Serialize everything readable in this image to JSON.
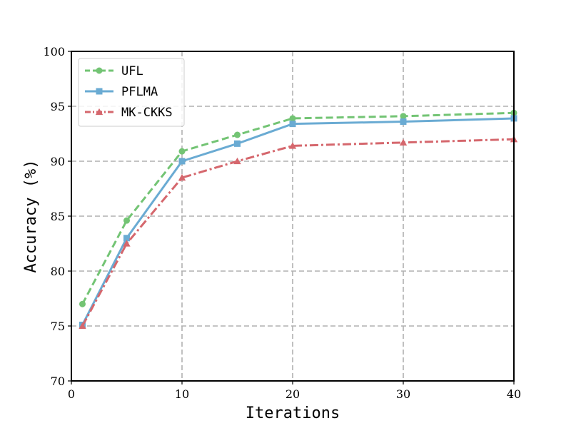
{
  "chart_data": {
    "type": "line",
    "title": "",
    "xlabel": "Iterations",
    "ylabel": "Accuracy (%)",
    "xlim": [
      0,
      40
    ],
    "ylim": [
      70,
      100
    ],
    "x_ticks": [
      0,
      10,
      20,
      30,
      40
    ],
    "y_ticks": [
      70,
      75,
      80,
      85,
      90,
      95,
      100
    ],
    "x_positions": [
      0,
      10,
      20,
      30,
      40
    ],
    "x_tick_labels": [
      "0",
      "10",
      "20",
      "30",
      "40"
    ],
    "y_tick_labels": [
      "70",
      "75",
      "80",
      "85",
      "90",
      "95",
      "100"
    ],
    "grid": true,
    "legend": "top-left",
    "x": [
      1,
      5,
      10,
      15,
      20,
      30,
      40
    ],
    "series": [
      {
        "name": "UFL",
        "color": "#73c474",
        "dash": "dashed",
        "marker": "circle",
        "values": [
          77.0,
          84.6,
          90.9,
          92.4,
          93.9,
          94.1,
          94.4
        ]
      },
      {
        "name": "PFLMA",
        "color": "#6aabd3",
        "dash": "solid",
        "marker": "square",
        "values": [
          75.1,
          83.0,
          90.0,
          91.6,
          93.4,
          93.6,
          93.9
        ]
      },
      {
        "name": "MK-CKKS",
        "color": "#d5676d",
        "dash": "dashdot",
        "marker": "triangle",
        "values": [
          75.0,
          82.5,
          88.5,
          90.0,
          91.4,
          91.7,
          92.0
        ]
      }
    ]
  }
}
